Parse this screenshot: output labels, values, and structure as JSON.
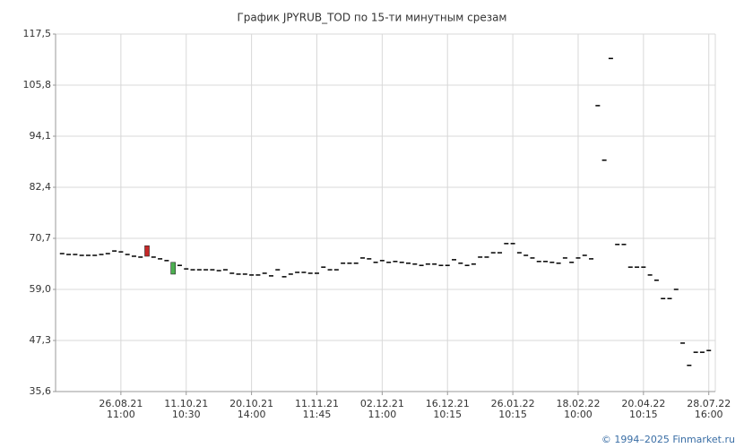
{
  "chart_data": {
    "type": "candlestick",
    "title": "График JPYRUB_TOD по 15-ти минутным срезам",
    "credit": "© 1994–2025 Finmarket.ru",
    "categories": [
      null,
      null,
      null,
      null,
      null,
      null,
      null,
      null,
      null,
      [
        "26.08.21",
        "11:00"
      ],
      null,
      null,
      null,
      null,
      null,
      null,
      null,
      null,
      null,
      [
        "11.10.21",
        "10:30"
      ],
      null,
      null,
      null,
      null,
      null,
      null,
      null,
      null,
      null,
      [
        "20.10.21",
        "14:00"
      ],
      null,
      null,
      null,
      null,
      null,
      null,
      null,
      null,
      null,
      [
        "11.11.21",
        "11:45"
      ],
      null,
      null,
      null,
      null,
      null,
      null,
      null,
      null,
      null,
      [
        "02.12.21",
        "11:00"
      ],
      null,
      null,
      null,
      null,
      null,
      null,
      null,
      null,
      null,
      [
        "16.12.21",
        "10:15"
      ],
      null,
      null,
      null,
      null,
      null,
      null,
      null,
      null,
      null,
      [
        "26.01.22",
        "10:15"
      ],
      null,
      null,
      null,
      null,
      null,
      null,
      null,
      null,
      null,
      [
        "18.02.22",
        "10:00"
      ],
      null,
      null,
      null,
      null,
      null,
      null,
      null,
      null,
      null,
      [
        "20.04.22",
        "10:15"
      ],
      null,
      null,
      null,
      null,
      null,
      null,
      null,
      null,
      null,
      [
        "28.07.22",
        "16:00"
      ]
    ],
    "open": [
      67.2,
      67.0,
      67.0,
      66.8,
      66.8,
      66.8,
      67.0,
      67.2,
      67.8,
      67.6,
      67.0,
      66.6,
      66.4,
      69.0,
      66.4,
      66.0,
      65.6,
      62.5,
      64.5,
      63.7,
      63.5,
      63.5,
      63.5,
      63.5,
      63.3,
      63.5,
      62.7,
      62.5,
      62.5,
      62.3,
      62.3,
      62.7,
      62.1,
      63.5,
      61.9,
      62.5,
      62.9,
      62.9,
      62.7,
      62.7,
      64.1,
      63.5,
      63.5,
      65.0,
      65.0,
      65.0,
      66.2,
      66.0,
      65.2,
      65.6,
      65.2,
      65.4,
      65.2,
      65.0,
      64.8,
      64.5,
      64.8,
      64.8,
      64.5,
      64.5,
      65.8,
      65.0,
      64.5,
      64.8,
      66.4,
      66.4,
      67.4,
      67.4,
      69.5,
      69.5,
      67.4,
      66.8,
      66.2,
      65.4,
      65.4,
      65.2,
      65.0,
      66.2,
      65.2,
      66.2,
      66.8,
      66.0,
      101.1,
      88.6,
      111.9,
      69.3,
      69.3,
      64.1,
      64.1,
      64.1,
      62.3,
      61.1,
      56.9,
      56.9,
      59.0,
      46.7,
      41.6,
      44.6,
      44.6,
      45.0
    ],
    "close": [
      67.2,
      67.0,
      67.0,
      66.8,
      66.8,
      66.8,
      67.0,
      67.2,
      67.8,
      67.6,
      67.0,
      66.6,
      66.4,
      66.6,
      66.4,
      66.0,
      65.6,
      65.2,
      64.5,
      63.7,
      63.5,
      63.5,
      63.5,
      63.5,
      63.3,
      63.5,
      62.7,
      62.5,
      62.5,
      62.3,
      62.3,
      62.7,
      62.1,
      63.5,
      61.9,
      62.5,
      62.9,
      62.9,
      62.7,
      62.7,
      64.1,
      63.5,
      63.5,
      65.0,
      65.0,
      65.0,
      66.2,
      66.0,
      65.2,
      65.6,
      65.2,
      65.4,
      65.2,
      65.0,
      64.8,
      64.5,
      64.8,
      64.8,
      64.5,
      64.5,
      65.8,
      65.0,
      64.5,
      64.8,
      66.4,
      66.4,
      67.4,
      67.4,
      69.5,
      69.5,
      67.4,
      66.8,
      66.2,
      65.4,
      65.4,
      65.2,
      65.0,
      66.2,
      65.2,
      66.2,
      66.8,
      66.0,
      101.1,
      88.6,
      111.9,
      69.3,
      69.3,
      64.1,
      64.1,
      64.1,
      62.3,
      61.1,
      56.9,
      56.9,
      59.0,
      46.7,
      41.6,
      44.6,
      44.6,
      45.0
    ],
    "up_color": "#4caf50",
    "down_color": "#c62828",
    "flat_color": "#000000",
    "ylim": [
      35.6,
      117.5
    ],
    "yticks": [
      {
        "value": 35.6,
        "label": "35,6"
      },
      {
        "value": 47.3,
        "label": "47,3"
      },
      {
        "value": 59.0,
        "label": "59,0"
      },
      {
        "value": 70.7,
        "label": "70,7"
      },
      {
        "value": 82.4,
        "label": "82,4"
      },
      {
        "value": 94.1,
        "label": "94,1"
      },
      {
        "value": 105.8,
        "label": "105,8"
      },
      {
        "value": 117.5,
        "label": "117,5"
      }
    ],
    "grid": true
  }
}
